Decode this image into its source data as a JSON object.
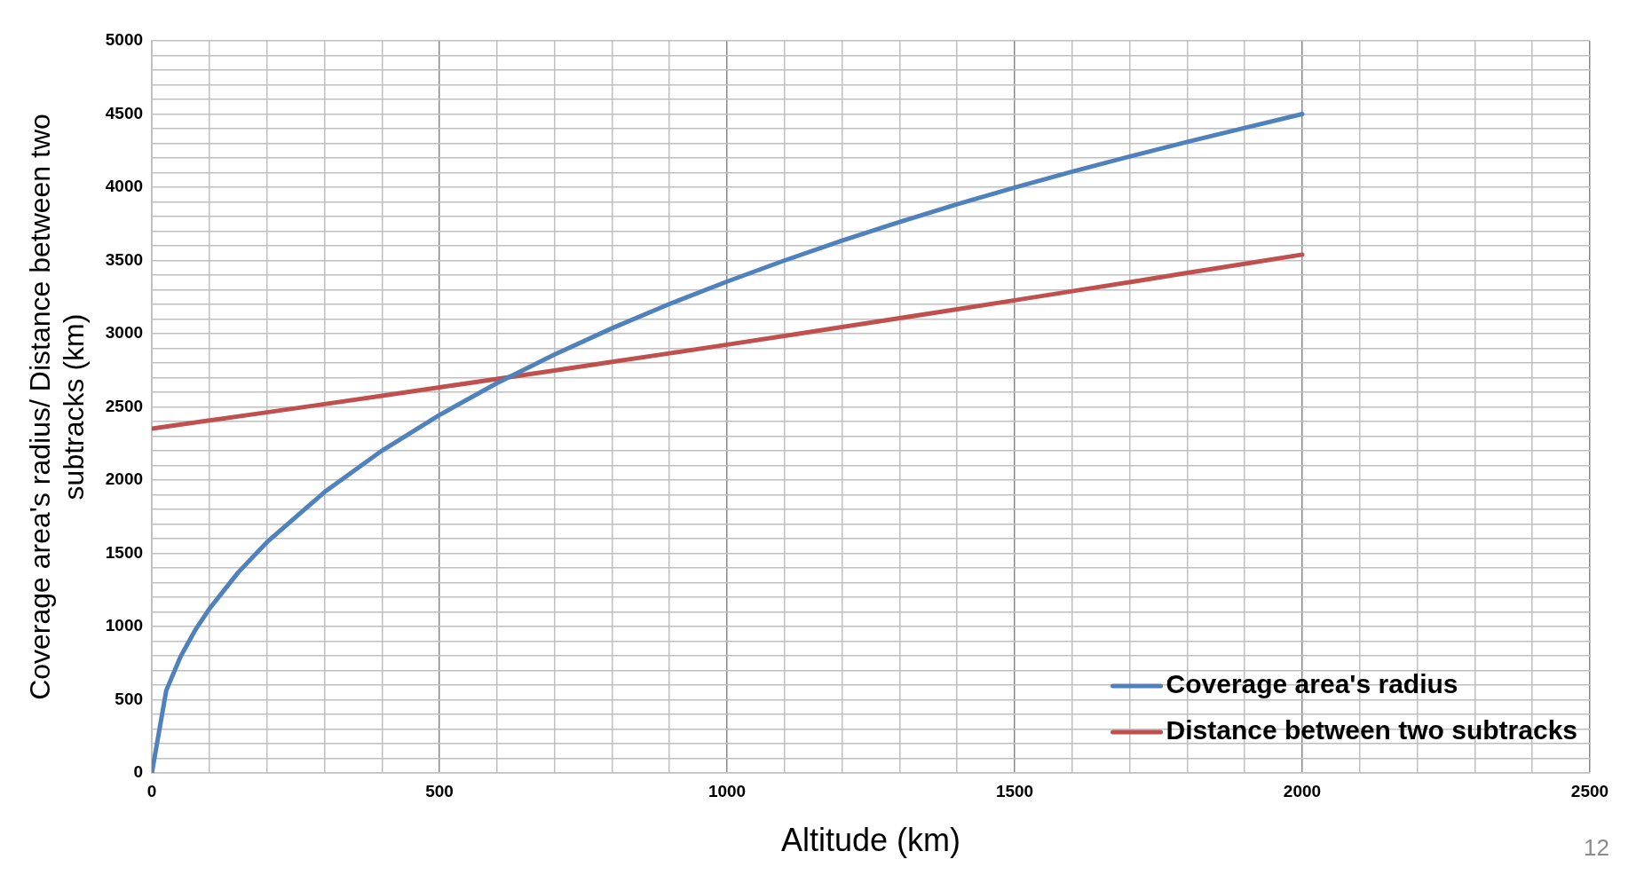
{
  "chart_data": {
    "type": "line",
    "xlabel": "Altitude (km)",
    "ylabel": "Coverage area's radius/ Distance between two subtracks (km)",
    "xlim": [
      0,
      2500
    ],
    "ylim": [
      0,
      5000
    ],
    "xticks": [
      0,
      {
        "value": 100,
        "label": null
      },
      {
        "value": 200,
        "label": null
      },
      {
        "value": 300,
        "label": null
      },
      {
        "value": 400,
        "label": null
      },
      500,
      {
        "value": 600,
        "label": null
      },
      {
        "value": 700,
        "label": null
      },
      {
        "value": 800,
        "label": null
      },
      {
        "value": 900,
        "label": null
      },
      1000,
      {
        "value": 1100,
        "label": null
      },
      {
        "value": 1200,
        "label": null
      },
      {
        "value": 1300,
        "label": null
      },
      {
        "value": 1400,
        "label": null
      },
      1500,
      {
        "value": 1600,
        "label": null
      },
      {
        "value": 1700,
        "label": null
      },
      {
        "value": 1800,
        "label": null
      },
      {
        "value": 1900,
        "label": null
      },
      2000,
      {
        "value": 2100,
        "label": null
      },
      {
        "value": 2200,
        "label": null
      },
      {
        "value": 2300,
        "label": null
      },
      {
        "value": 2400,
        "label": null
      },
      2500
    ],
    "yticks": [
      0,
      {
        "value": 100,
        "label": null
      },
      {
        "value": 200,
        "label": null
      },
      {
        "value": 300,
        "label": null
      },
      {
        "value": 400,
        "label": null
      },
      500,
      {
        "value": 600,
        "label": null
      },
      {
        "value": 700,
        "label": null
      },
      {
        "value": 800,
        "label": null
      },
      {
        "value": 900,
        "label": null
      },
      1000,
      {
        "value": 1100,
        "label": null
      },
      {
        "value": 1200,
        "label": null
      },
      {
        "value": 1300,
        "label": null
      },
      {
        "value": 1400,
        "label": null
      },
      1500,
      {
        "value": 1600,
        "label": null
      },
      {
        "value": 1700,
        "label": null
      },
      {
        "value": 1800,
        "label": null
      },
      {
        "value": 1900,
        "label": null
      },
      2000,
      {
        "value": 2100,
        "label": null
      },
      {
        "value": 2200,
        "label": null
      },
      {
        "value": 2300,
        "label": null
      },
      {
        "value": 2400,
        "label": null
      },
      2500,
      {
        "value": 2600,
        "label": null
      },
      {
        "value": 2700,
        "label": null
      },
      {
        "value": 2800,
        "label": null
      },
      {
        "value": 2900,
        "label": null
      },
      3000,
      {
        "value": 3100,
        "label": null
      },
      {
        "value": 3200,
        "label": null
      },
      {
        "value": 3300,
        "label": null
      },
      {
        "value": 3400,
        "label": null
      },
      3500,
      {
        "value": 3600,
        "label": null
      },
      {
        "value": 3700,
        "label": null
      },
      {
        "value": 3800,
        "label": null
      },
      {
        "value": 3900,
        "label": null
      },
      4000,
      {
        "value": 4100,
        "label": null
      },
      {
        "value": 4200,
        "label": null
      },
      {
        "value": 4300,
        "label": null
      },
      {
        "value": 4400,
        "label": null
      },
      4500,
      {
        "value": 4600,
        "label": null
      },
      {
        "value": 4700,
        "label": null
      },
      {
        "value": 4800,
        "label": null
      },
      {
        "value": 4900,
        "label": null
      },
      5000
    ],
    "grid": true,
    "legend": "bottom right",
    "marker": "none",
    "line_style": "solid",
    "series": [
      {
        "name": "Coverage area's radius",
        "color": "#4f81bd",
        "x": [
          0,
          25,
          50,
          75,
          100,
          150,
          200,
          300,
          400,
          500,
          600,
          700,
          800,
          900,
          1000,
          1100,
          1200,
          1300,
          1400,
          1500,
          1600,
          1700,
          1800,
          1900,
          2000
        ],
        "values": [
          0,
          563,
          795,
          973,
          1121,
          1369,
          1576,
          1918,
          2201,
          2445,
          2662,
          2858,
          3037,
          3203,
          3356,
          3500,
          3636,
          3763,
          3884,
          3998,
          4107,
          4210,
          4310,
          4405,
          4500
        ]
      },
      {
        "name": "Distance between two subtracks",
        "color": "#c0504d",
        "x": [
          0,
          100,
          200,
          300,
          400,
          500,
          600,
          700,
          800,
          900,
          1000,
          1100,
          1200,
          1300,
          1400,
          1500,
          1600,
          1700,
          1800,
          1900,
          2000
        ],
        "values": [
          2351,
          2407,
          2463,
          2519,
          2576,
          2633,
          2691,
          2749,
          2807,
          2866,
          2925,
          2985,
          3046,
          3106,
          3167,
          3228,
          3290,
          3352,
          3415,
          3477,
          3540
        ]
      }
    ],
    "annotations": [
      "12"
    ]
  }
}
